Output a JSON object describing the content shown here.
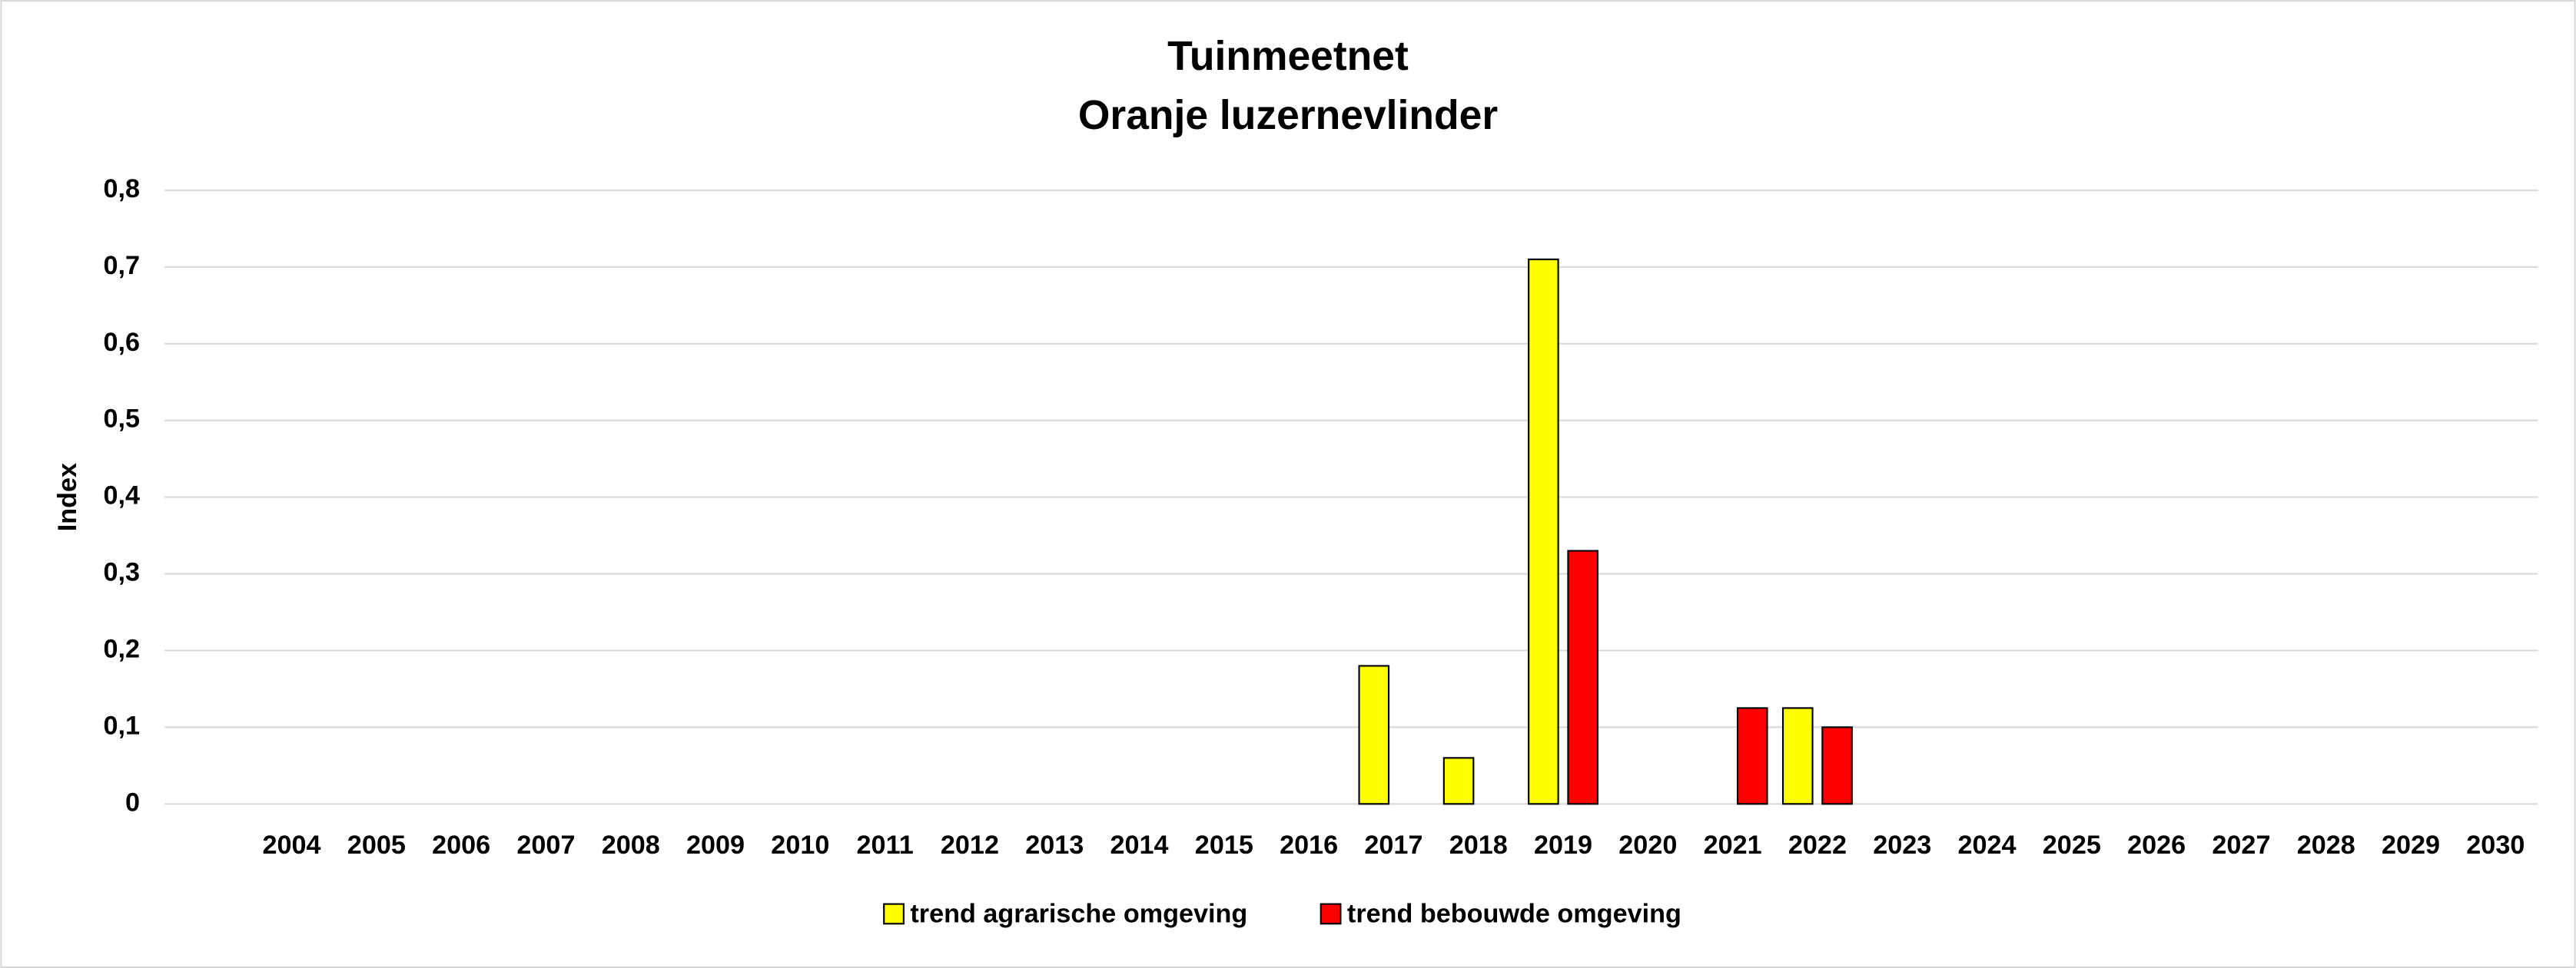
{
  "chart_data": {
    "type": "bar",
    "title": "Tuinmeetnet",
    "subtitle": "Oranje luzernevlinder",
    "y_label": "Index",
    "categories": [
      null,
      "2004",
      "2005",
      "2006",
      "2007",
      "2008",
      "2009",
      "2010",
      "2011",
      "2012",
      "2013",
      "2014",
      "2015",
      "2016",
      "2017",
      "2018",
      "2019",
      "2020",
      "2021",
      "2022",
      "2023",
      "2024",
      "2025",
      "2026",
      "2027",
      "2028",
      "2029",
      "2030"
    ],
    "series": [
      {
        "name": "trend agrarische omgeving",
        "color": "#ffff00",
        "values": [
          null,
          null,
          null,
          null,
          null,
          null,
          null,
          null,
          null,
          null,
          null,
          null,
          null,
          null,
          0.18,
          0.06,
          0.71,
          null,
          null,
          0.125,
          null,
          null,
          null,
          null,
          null,
          null,
          null,
          null
        ]
      },
      {
        "name": "trend bebouwde omgeving",
        "color": "#ff0000",
        "values": [
          null,
          null,
          null,
          null,
          null,
          null,
          null,
          null,
          null,
          null,
          null,
          null,
          null,
          null,
          null,
          null,
          0.33,
          null,
          0.125,
          0.1,
          null,
          null,
          null,
          null,
          null,
          null,
          null,
          null
        ]
      }
    ],
    "ylim": [
      0,
      0.8
    ],
    "yticks": [
      0,
      {
        "value": 0.1,
        "label": "0,1"
      },
      {
        "value": 0.2,
        "label": "0,2"
      },
      {
        "value": 0.3,
        "label": "0,3"
      },
      {
        "value": 0.4,
        "label": "0,4"
      },
      {
        "value": 0.5,
        "label": "0,5"
      },
      {
        "value": 0.6,
        "label": "0,6"
      },
      {
        "value": 0.7,
        "label": "0,7"
      },
      {
        "value": 0.8,
        "label": "0,8"
      }
    ],
    "grid": true,
    "legend": "bottom"
  }
}
